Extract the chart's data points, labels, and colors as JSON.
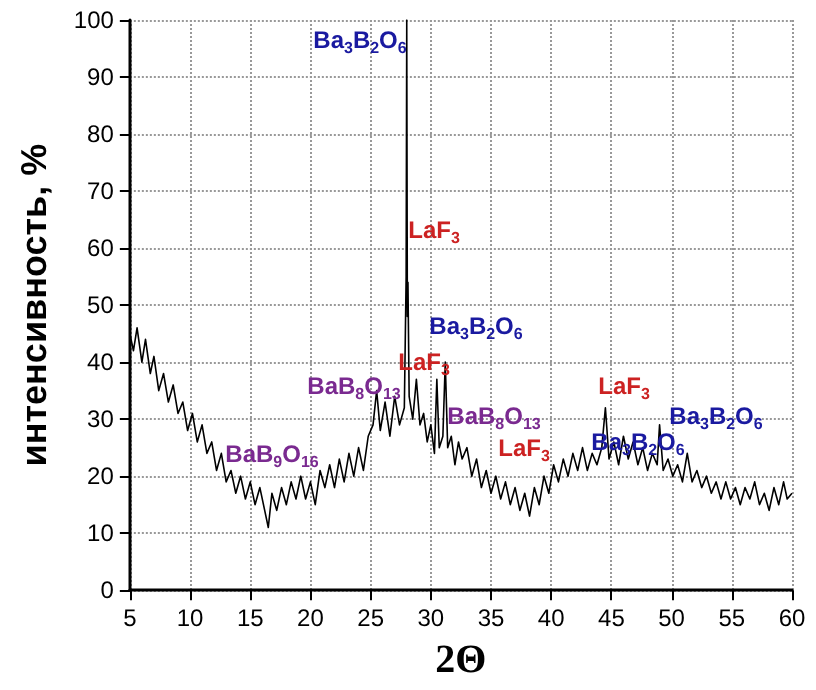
{
  "chart_data": {
    "type": "line",
    "xlabel": "2Θ",
    "ylabel": "интенсивность, %",
    "x": [
      5,
      5.3,
      5.6,
      6,
      6.3,
      6.7,
      7,
      7.4,
      7.8,
      8.2,
      8.6,
      9,
      9.4,
      9.8,
      10.2,
      10.6,
      11,
      11.4,
      11.8,
      12.2,
      12.6,
      13,
      13.4,
      13.8,
      14.2,
      14.6,
      15,
      15.4,
      15.8,
      16.2,
      16.5,
      16.8,
      17.2,
      17.6,
      18,
      18.4,
      18.8,
      19.2,
      19.6,
      20,
      20.4,
      20.8,
      21.2,
      21.6,
      22,
      22.4,
      22.8,
      23.2,
      23.6,
      24,
      24.4,
      24.8,
      25.2,
      25.5,
      25.8,
      26.2,
      26.6,
      27,
      27.4,
      27.8,
      27.95,
      28,
      28.05,
      28.1,
      28.2,
      28.5,
      28.8,
      29.1,
      29.4,
      29.7,
      30,
      30.3,
      30.5,
      30.7,
      31,
      31.2,
      31.4,
      31.7,
      32,
      32.3,
      32.6,
      33,
      33.4,
      33.8,
      34.2,
      34.6,
      35,
      35.4,
      35.8,
      36.2,
      36.6,
      37,
      37.4,
      37.8,
      38.2,
      38.6,
      39,
      39.4,
      39.8,
      40.2,
      40.6,
      41,
      41.4,
      41.8,
      42.2,
      42.6,
      43,
      43.4,
      43.8,
      44.2,
      44.5,
      44.8,
      45.2,
      45.6,
      46,
      46.4,
      46.8,
      47.2,
      47.6,
      48,
      48.4,
      48.8,
      49,
      49.3,
      49.7,
      50.1,
      50.5,
      50.9,
      51.3,
      51.7,
      52.1,
      52.5,
      52.9,
      53.3,
      53.7,
      54.1,
      54.5,
      54.9,
      55.3,
      55.7,
      56.1,
      56.5,
      56.9,
      57.3,
      57.7,
      58.1,
      58.5,
      58.9,
      59.3,
      59.6,
      60
    ],
    "series": [
      {
        "color": "#000000",
        "values": [
          45,
          42,
          46,
          40,
          44,
          38,
          41,
          35,
          38,
          33,
          36,
          31,
          33,
          28,
          31,
          26,
          29,
          24,
          26,
          21,
          24,
          19,
          21,
          17,
          20,
          16,
          19,
          15,
          18,
          14,
          11,
          17,
          14,
          18,
          15,
          19,
          16,
          20,
          16,
          19,
          15,
          21,
          18,
          22,
          18,
          23,
          19,
          24,
          20,
          25,
          21,
          27,
          29,
          35,
          28,
          33,
          27,
          34,
          29,
          32,
          55,
          100,
          48,
          54,
          34,
          30,
          37,
          29,
          31,
          26,
          29,
          24,
          37,
          25,
          27,
          40,
          25,
          27,
          22,
          26,
          23,
          25,
          20,
          23,
          18,
          21,
          17,
          20,
          16,
          19,
          15,
          18,
          14,
          17,
          13,
          18,
          15,
          20,
          17,
          22,
          19,
          23,
          20,
          24,
          21,
          25,
          21,
          24,
          22,
          25,
          32,
          23,
          26,
          22,
          27,
          23,
          26,
          22,
          25,
          21,
          24,
          22,
          29,
          21,
          23,
          20,
          22,
          19,
          24,
          19,
          21,
          18,
          20,
          17,
          19,
          16,
          19,
          16,
          18,
          15,
          18,
          16,
          19,
          15,
          17,
          14,
          18,
          15,
          19,
          16,
          17
        ]
      }
    ],
    "xlim": [
      5,
      60
    ],
    "xticks": [
      5,
      10,
      15,
      20,
      25,
      30,
      35,
      40,
      45,
      50,
      55,
      60
    ],
    "ylim": [
      0,
      100
    ],
    "yticks": [
      0,
      10,
      20,
      30,
      40,
      50,
      60,
      70,
      80,
      90,
      100
    ],
    "grid": true,
    "marker": "none",
    "line_style": "solid",
    "annotations": [
      "Ba$_{3}$B$_{2}$O$_{6}$",
      "LaF$_{3}$",
      "Ba$_{3}$B$_{2}$O$_{6}$",
      "LaF$_{3}$",
      "BaB$_{8}$O$_{13}$",
      "BaB$_{8}$O$_{13}$",
      "LaF$_{3}$",
      "BaB$_{9}$O$_{16}$",
      "LaF$_{3}$",
      "Ba$_{3}$B$_{2}$O$_{6}$",
      "Ba$_{3}$B$_{2}$O$_{6}$"
    ]
  }
}
